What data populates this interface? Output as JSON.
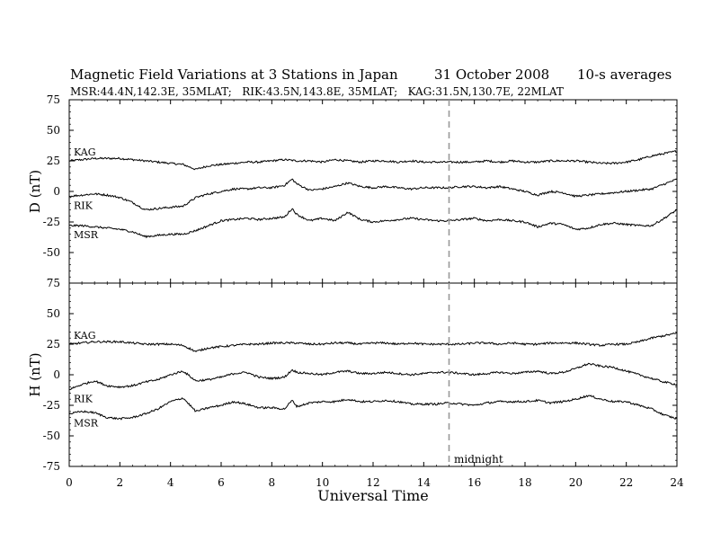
{
  "chart_data": {
    "type": "line",
    "title": "Magnetic Field Variations at 3 Stations in Japan",
    "date": "31 October 2008",
    "averaging": "10-s averages",
    "subtitle": "MSR:44.4N,142.3E, 35MLAT;   RIK:43.5N,143.8E, 35MLAT;   KAG:31.5N,130.7E, 22MLAT",
    "xlabel": "Universal Time",
    "xlim": [
      0,
      24
    ],
    "xticks": [
      0,
      2,
      4,
      6,
      8,
      10,
      12,
      14,
      16,
      18,
      20,
      22,
      24
    ],
    "midline": {
      "x": 15,
      "label": "midnight"
    },
    "panels": [
      {
        "ylabel": "D (nT)",
        "ylim": [
          -75,
          75
        ],
        "yticks": [
          75,
          50,
          25,
          0,
          -25,
          -50,
          -75
        ],
        "series": [
          {
            "name": "KAG",
            "x": [
              0,
              0.5,
              1,
              1.5,
              2,
              2.5,
              3,
              3.5,
              4,
              4.5,
              5,
              5.5,
              6,
              6.5,
              7,
              7.5,
              8,
              8.5,
              9,
              9.5,
              10,
              10.5,
              11,
              11.5,
              12,
              12.5,
              13,
              13.5,
              14,
              14.5,
              15,
              15.5,
              16,
              16.5,
              17,
              17.5,
              18,
              18.5,
              19,
              19.5,
              20,
              20.5,
              21,
              21.5,
              22,
              22.5,
              23,
              23.5,
              24
            ],
            "y": [
              25,
              26,
              27,
              27,
              27,
              26,
              25,
              24,
              23,
              22,
              18,
              21,
              22,
              23,
              24,
              24,
              25,
              26,
              25,
              25,
              24,
              26,
              25,
              24,
              25,
              25,
              24,
              25,
              24,
              24,
              24,
              24,
              24,
              25,
              24,
              25,
              24,
              24,
              25,
              25,
              25,
              24,
              23,
              23,
              24,
              26,
              29,
              31,
              33
            ]
          },
          {
            "name": "RIK",
            "x": [
              0,
              0.5,
              1,
              1.5,
              2,
              2.5,
              3,
              3.5,
              4,
              4.5,
              5,
              5.5,
              6,
              6.5,
              7,
              7.5,
              8,
              8.5,
              8.8,
              9,
              9.5,
              10,
              10.5,
              11,
              11.5,
              12,
              12.5,
              13,
              13.5,
              14,
              14.5,
              15,
              15.5,
              16,
              16.5,
              17,
              17.5,
              18,
              18.5,
              19,
              19.5,
              20,
              20.5,
              21,
              21.5,
              22,
              22.5,
              23,
              23.5,
              24
            ],
            "y": [
              -4,
              -3,
              -2,
              -3,
              -5,
              -9,
              -15,
              -14,
              -13,
              -12,
              -5,
              -2,
              0,
              2,
              2,
              3,
              3,
              5,
              10,
              6,
              1,
              2,
              4,
              7,
              4,
              3,
              4,
              3,
              2,
              3,
              3,
              3,
              4,
              4,
              3,
              4,
              2,
              0,
              -3,
              0,
              -1,
              -4,
              -3,
              -2,
              -1,
              0,
              1,
              2,
              6,
              10
            ]
          },
          {
            "name": "MSR",
            "x": [
              0,
              0.5,
              1,
              1.5,
              2,
              2.5,
              3,
              3.5,
              4,
              4.5,
              5,
              5.5,
              6,
              6.5,
              7,
              7.5,
              8,
              8.5,
              8.8,
              9,
              9.5,
              10,
              10.5,
              11,
              11.5,
              12,
              12.5,
              13,
              13.5,
              14,
              14.5,
              15,
              15.5,
              16,
              16.5,
              17,
              17.5,
              18,
              18.5,
              19,
              19.5,
              20,
              20.5,
              21,
              21.5,
              22,
              22.5,
              23,
              23.5,
              24
            ],
            "y": [
              -28,
              -28,
              -29,
              -30,
              -31,
              -33,
              -37,
              -36,
              -35,
              -35,
              -32,
              -28,
              -24,
              -23,
              -22,
              -23,
              -22,
              -21,
              -14,
              -19,
              -24,
              -22,
              -24,
              -17,
              -23,
              -25,
              -24,
              -23,
              -22,
              -23,
              -24,
              -24,
              -23,
              -22,
              -24,
              -23,
              -24,
              -25,
              -29,
              -26,
              -27,
              -31,
              -30,
              -27,
              -26,
              -27,
              -28,
              -28,
              -22,
              -15
            ]
          }
        ]
      },
      {
        "ylabel": "H (nT)",
        "ylim": [
          -75,
          75
        ],
        "yticks": [
          75,
          50,
          25,
          0,
          -25,
          -50,
          -75
        ],
        "series": [
          {
            "name": "KAG",
            "x": [
              0,
              0.5,
              1,
              1.5,
              2,
              2.5,
              3,
              3.5,
              4,
              4.5,
              5,
              5.5,
              6,
              6.5,
              7,
              7.5,
              8,
              8.5,
              9,
              9.5,
              10,
              10.5,
              11,
              11.5,
              12,
              12.5,
              13,
              13.5,
              14,
              14.5,
              15,
              15.5,
              16,
              16.5,
              17,
              17.5,
              18,
              18.5,
              19,
              19.5,
              20,
              20.5,
              21,
              21.5,
              22,
              22.5,
              23,
              23.5,
              24
            ],
            "y": [
              25,
              26,
              27,
              27,
              27,
              26,
              25,
              25,
              25,
              24,
              19,
              22,
              23,
              24,
              25,
              25,
              26,
              26,
              26,
              25,
              25,
              26,
              26,
              25,
              26,
              26,
              25,
              26,
              25,
              25,
              25,
              25,
              26,
              26,
              25,
              26,
              25,
              25,
              26,
              26,
              26,
              25,
              24,
              25,
              25,
              27,
              30,
              32,
              34
            ]
          },
          {
            "name": "RIK",
            "x": [
              0,
              0.5,
              1,
              1.5,
              2,
              2.5,
              3,
              3.5,
              4,
              4.5,
              5,
              5.5,
              6,
              6.5,
              7,
              7.5,
              8,
              8.5,
              8.8,
              9,
              9.5,
              10,
              10.5,
              11,
              11.5,
              12,
              12.5,
              13,
              13.5,
              14,
              14.5,
              15,
              15.5,
              16,
              16.5,
              17,
              17.5,
              18,
              18.5,
              19,
              19.5,
              20,
              20.5,
              21,
              21.5,
              22,
              22.5,
              23,
              23.5,
              24
            ],
            "y": [
              -12,
              -8,
              -5,
              -9,
              -10,
              -9,
              -6,
              -4,
              0,
              3,
              -5,
              -4,
              -2,
              1,
              2,
              -2,
              -3,
              -2,
              4,
              2,
              1,
              0,
              2,
              3,
              1,
              1,
              2,
              1,
              0,
              1,
              2,
              2,
              1,
              0,
              1,
              2,
              1,
              2,
              3,
              1,
              2,
              5,
              9,
              7,
              6,
              3,
              0,
              -3,
              -6,
              -8
            ]
          },
          {
            "name": "MSR",
            "x": [
              0,
              0.5,
              1,
              1.5,
              2,
              2.5,
              3,
              3.5,
              4,
              4.5,
              5,
              5.5,
              6,
              6.5,
              7,
              7.5,
              8,
              8.5,
              8.8,
              9,
              9.5,
              10,
              10.5,
              11,
              11.5,
              12,
              12.5,
              13,
              13.5,
              14,
              14.5,
              15,
              15.5,
              16,
              16.5,
              17,
              17.5,
              18,
              18.5,
              19,
              19.5,
              20,
              20.5,
              21,
              21.5,
              22,
              22.5,
              23,
              23.5,
              24
            ],
            "y": [
              -32,
              -30,
              -31,
              -35,
              -36,
              -35,
              -32,
              -28,
              -22,
              -19,
              -30,
              -27,
              -25,
              -22,
              -24,
              -27,
              -27,
              -28,
              -21,
              -26,
              -23,
              -22,
              -22,
              -20,
              -22,
              -22,
              -21,
              -22,
              -24,
              -24,
              -24,
              -23,
              -24,
              -25,
              -23,
              -22,
              -22,
              -22,
              -21,
              -23,
              -22,
              -20,
              -17,
              -20,
              -22,
              -22,
              -25,
              -28,
              -33,
              -36
            ]
          }
        ]
      }
    ]
  }
}
